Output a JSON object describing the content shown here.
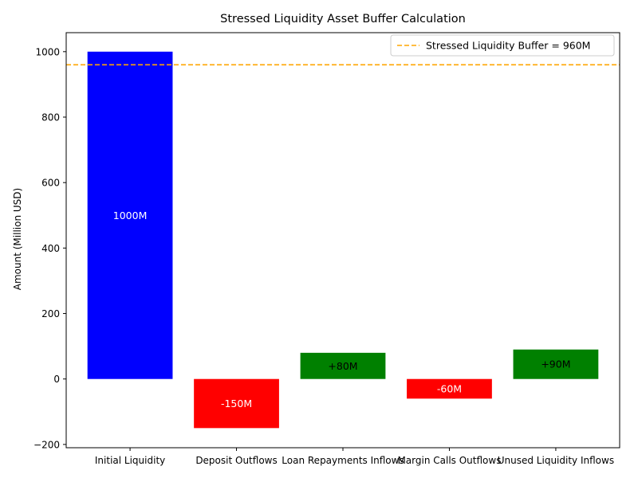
{
  "chart_data": {
    "type": "bar",
    "title": "Stressed Liquidity Asset Buffer Calculation",
    "xlabel": "",
    "ylabel": "Amount (Million USD)",
    "ylim": [
      -210,
      1058
    ],
    "yticks": [
      -200,
      0,
      200,
      400,
      600,
      800,
      1000
    ],
    "ytick_labels": [
      "−200",
      "0",
      "200",
      "400",
      "600",
      "800",
      "1000"
    ],
    "categories": [
      "Initial Liquidity",
      "Deposit Outflows",
      "Loan Repayments Inflows",
      "Margin Calls Outflows",
      "Unused Liquidity Inflows"
    ],
    "values": [
      1000,
      -150,
      80,
      -60,
      90
    ],
    "bar_labels": [
      "1000M",
      "-150M",
      "+80M",
      "-60M",
      "+90M"
    ],
    "colors": [
      "#0000ff",
      "#ff0000",
      "#008000",
      "#ff0000",
      "#008000"
    ],
    "label_colors": [
      "#ffffff",
      "#ffffff",
      "#000000",
      "#ffffff",
      "#000000"
    ],
    "reference_line": {
      "value": 960,
      "label": "Stressed Liquidity Buffer = 960M",
      "color": "#ffa500",
      "style": "dashed"
    },
    "legend_position": "top-right",
    "grid": false
  }
}
